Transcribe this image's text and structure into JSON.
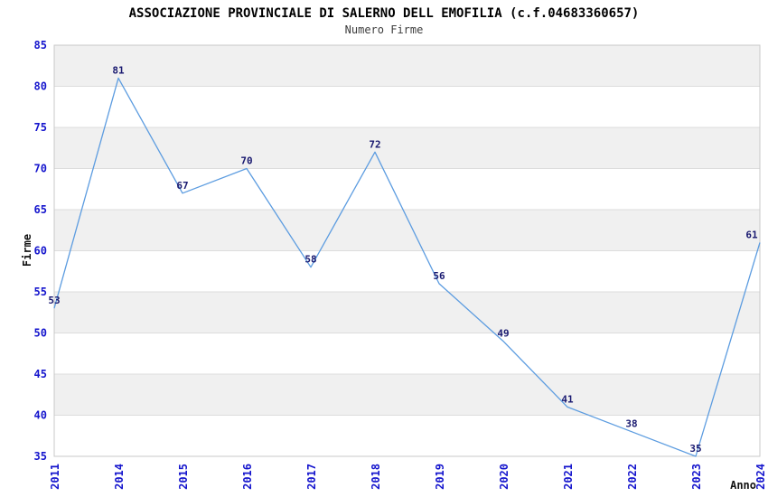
{
  "chart_data": {
    "type": "line",
    "title": "ASSOCIAZIONE PROVINCIALE DI SALERNO DELL EMOFILIA (c.f.04683360657)",
    "subtitle": "Numero Firme",
    "xlabel": "Anno",
    "ylabel": "Firme",
    "categories": [
      "2011",
      "2014",
      "2015",
      "2016",
      "2017",
      "2018",
      "2019",
      "2020",
      "2021",
      "2022",
      "2023",
      "2024"
    ],
    "values": [
      53,
      81,
      67,
      70,
      58,
      72,
      56,
      49,
      41,
      38,
      35,
      61
    ],
    "ylim": [
      35,
      85
    ],
    "ytick_step": 5,
    "grid": true,
    "legend": "none",
    "colors": {
      "line": "#5c9ce0",
      "tick_label": "#1515cd",
      "point_label": "#191970",
      "band": "#f0f0f0",
      "grid": "#dcdcdc",
      "border": "#c8c8c8",
      "background": "#ffffff"
    }
  }
}
